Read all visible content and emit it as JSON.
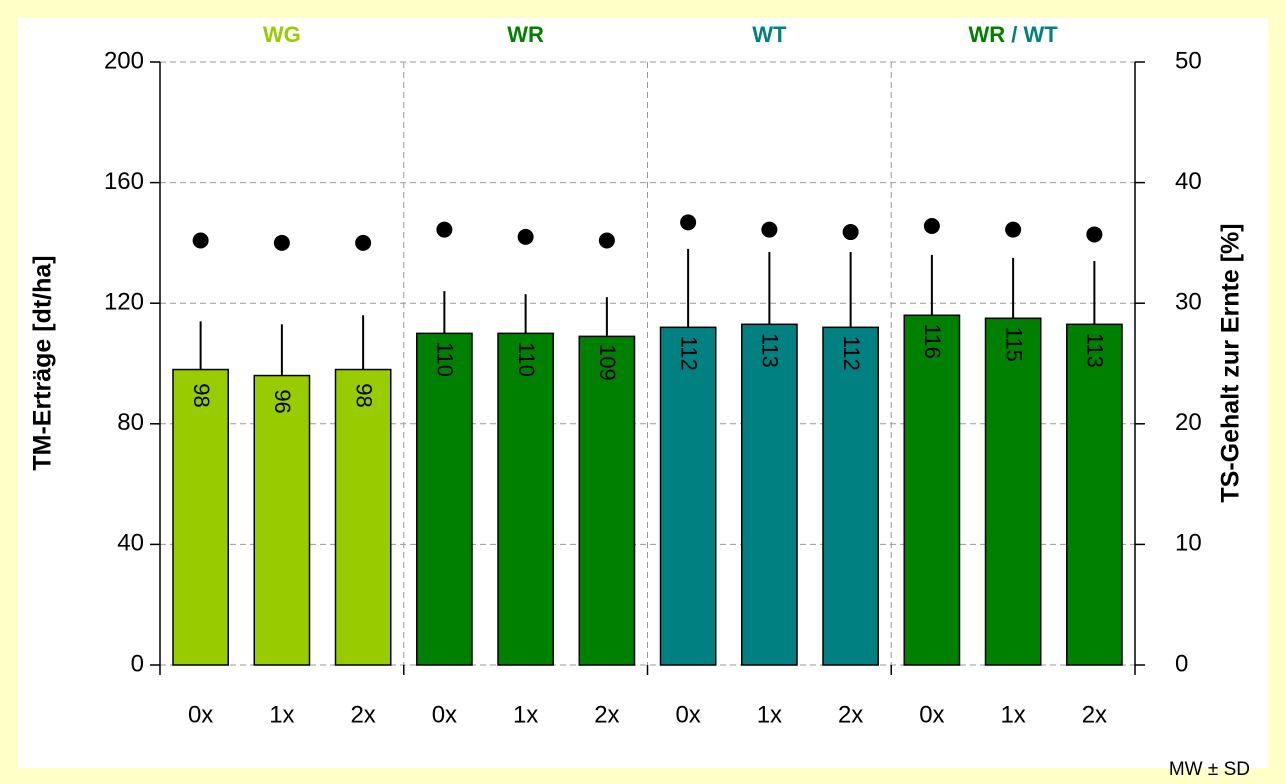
{
  "chart_data": {
    "type": "bar",
    "categories": [
      "0x",
      "1x",
      "2x",
      "0x",
      "1x",
      "2x",
      "0x",
      "1x",
      "2x",
      "0x",
      "1x",
      "2x"
    ],
    "groups": [
      {
        "label_parts": [
          {
            "text": "WG",
            "color": "#99cc00"
          }
        ]
      },
      {
        "label_parts": [
          {
            "text": "WR",
            "color": "#008000"
          }
        ]
      },
      {
        "label_parts": [
          {
            "text": "WT",
            "color": "#008080"
          }
        ]
      },
      {
        "label_parts": [
          {
            "text": "WR",
            "color": "#008000"
          },
          {
            "text": " / WT",
            "color": "#008080"
          }
        ]
      }
    ],
    "series": [
      {
        "colors": [
          "#99cc00",
          "#99cc00",
          "#99cc00",
          "#008000",
          "#008000",
          "#008000",
          "#008080",
          "#008080",
          "#008080",
          "#008000",
          "#008000",
          "#008000"
        ],
        "values": [
          98,
          96,
          98,
          110,
          110,
          109,
          112,
          113,
          112,
          116,
          115,
          113
        ],
        "errors": [
          16,
          17,
          18,
          14,
          13,
          13,
          26,
          24,
          25,
          20,
          20,
          21
        ]
      },
      {
        "type": "scatter",
        "axis": "y2",
        "color": "#000000",
        "values": [
          35.2,
          35.0,
          35.0,
          36.1,
          35.5,
          35.2,
          36.7,
          36.1,
          35.9,
          36.4,
          36.1,
          35.7
        ]
      }
    ],
    "ylabel": "TM-Erträge [dt/ha]",
    "y2label": "TS-Gehalt zur Ernte [%]",
    "ylim": [
      0,
      200
    ],
    "yticks": [
      0,
      40,
      80,
      120,
      160,
      200
    ],
    "y2lim": [
      0,
      50
    ],
    "y2ticks": [
      0,
      10,
      20,
      30,
      40,
      50
    ],
    "grid": true,
    "note": "MW ± SD"
  }
}
